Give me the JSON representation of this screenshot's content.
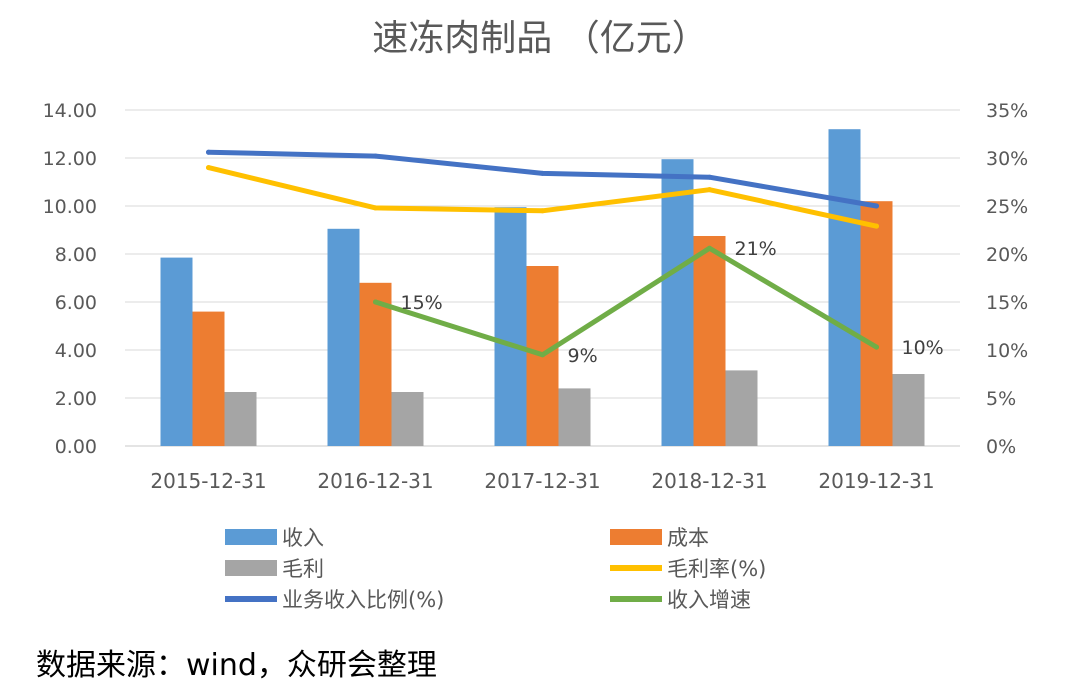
{
  "chart_data": {
    "type": "bar",
    "title": "速冻肉制品 （亿元）",
    "categories": [
      "2015-12-31",
      "2016-12-31",
      "2017-12-31",
      "2018-12-31",
      "2019-12-31"
    ],
    "left_axis": {
      "min": 0,
      "max": 14,
      "step": 2,
      "tick_labels": [
        "0.00",
        "2.00",
        "4.00",
        "6.00",
        "8.00",
        "10.00",
        "12.00",
        "14.00"
      ]
    },
    "right_axis": {
      "min": 0,
      "max": 35,
      "step": 5,
      "tick_labels": [
        "0%",
        "5%",
        "10%",
        "15%",
        "20%",
        "25%",
        "30%",
        "35%"
      ]
    },
    "bar_series": [
      {
        "name": "收入",
        "color": "#5B9BD5",
        "values": [
          7.85,
          9.05,
          9.95,
          11.95,
          13.2
        ]
      },
      {
        "name": "成本",
        "color": "#ED7D31",
        "values": [
          5.6,
          6.8,
          7.5,
          8.75,
          10.2
        ]
      },
      {
        "name": "毛利",
        "color": "#A5A5A5",
        "values": [
          2.25,
          2.25,
          2.4,
          3.15,
          3.0
        ]
      }
    ],
    "line_series": [
      {
        "name": "毛利率(%)",
        "color": "#FFC000",
        "axis": "right",
        "values": [
          29.0,
          24.8,
          24.5,
          26.7,
          22.9
        ]
      },
      {
        "name": "业务收入比例(%)",
        "color": "#4472C4",
        "axis": "right",
        "values": [
          30.6,
          30.2,
          28.4,
          28.0,
          25.0
        ]
      },
      {
        "name": "收入增速",
        "color": "#70AD47",
        "axis": "right",
        "values": [
          null,
          15.0,
          9.5,
          20.6,
          10.3
        ],
        "data_labels": [
          "",
          "15%",
          "9%",
          "21%",
          "10%"
        ]
      }
    ],
    "legend": [
      "收入",
      "成本",
      "毛利",
      "毛利率(%)",
      "业务收入比例(%)",
      "收入增速"
    ],
    "legend_position": "bottom"
  },
  "source_note": "数据来源：wind，众研会整理"
}
